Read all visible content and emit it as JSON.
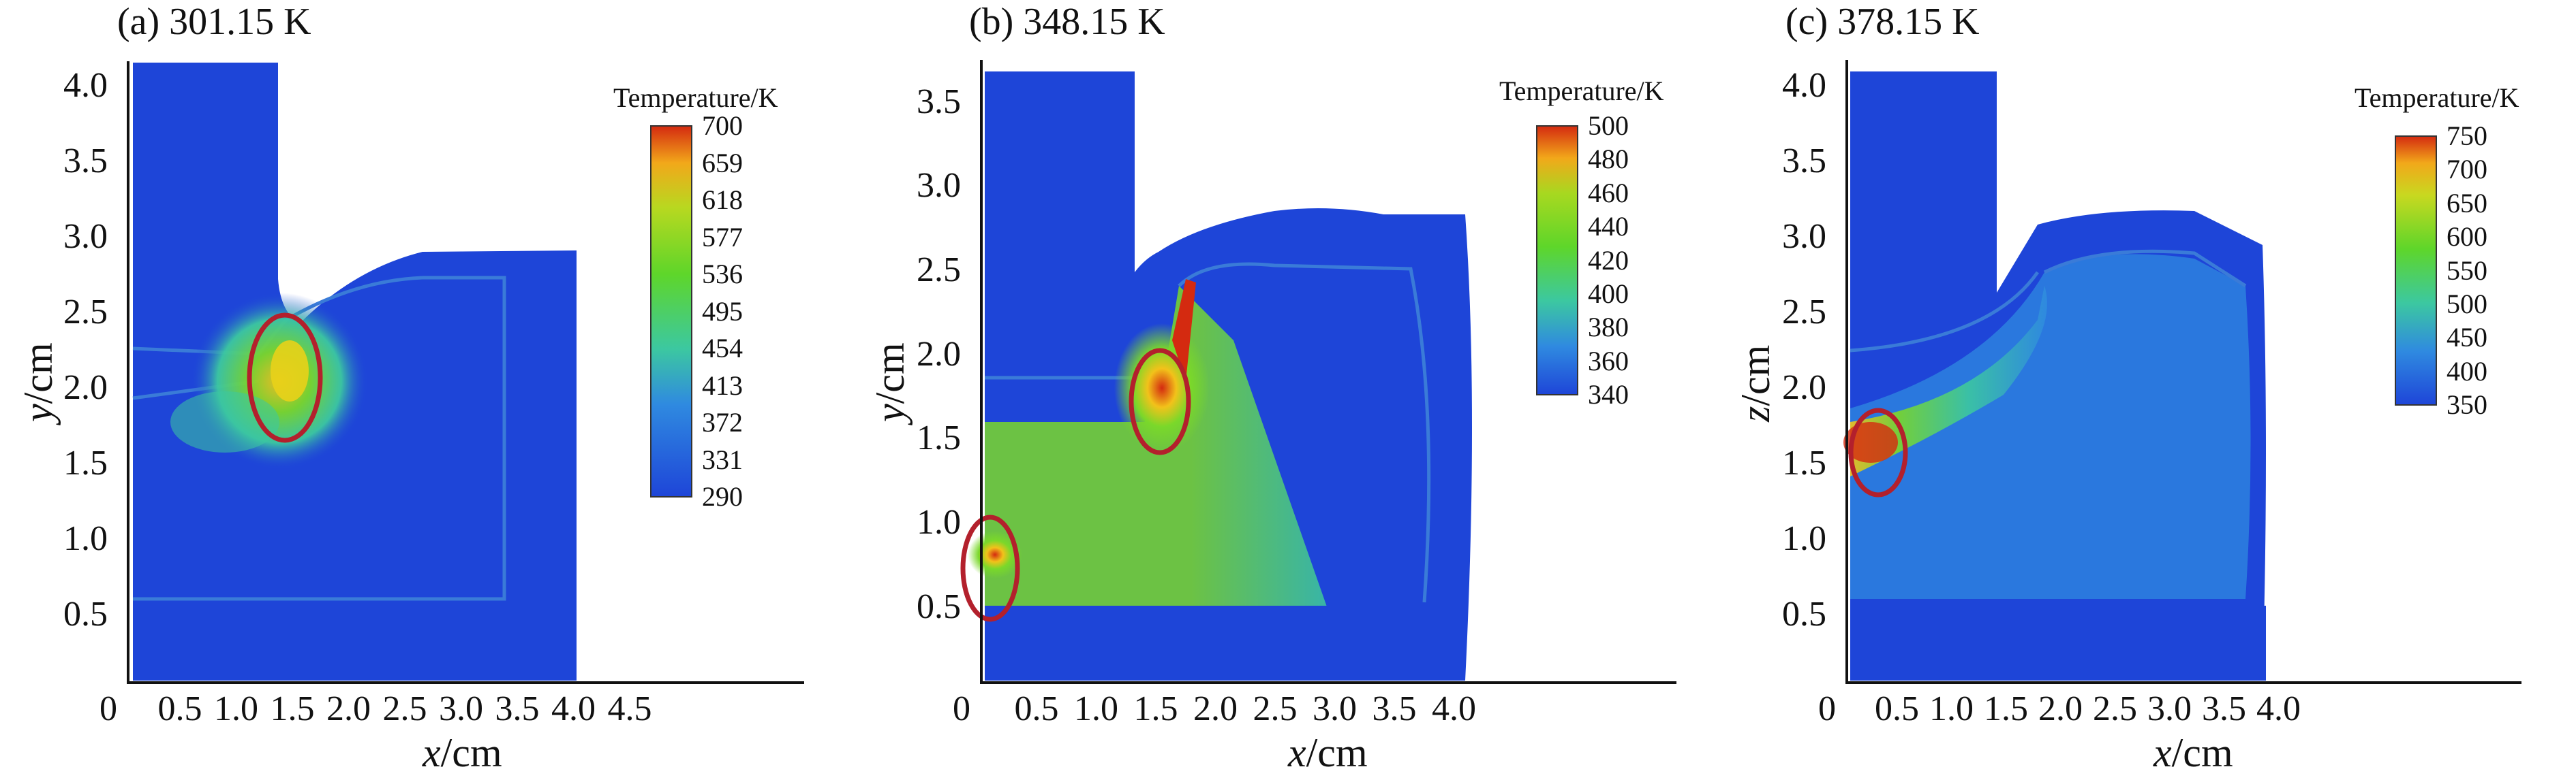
{
  "chart_data": [
    {
      "type": "heatmap",
      "title": "(a) 301.15 K",
      "xlabel_var": "x",
      "xlabel_unit": "/cm",
      "ylabel_var": "y",
      "ylabel_unit": "/cm",
      "xticks": [
        "0",
        "0.5",
        "1.0",
        "1.5",
        "2.0",
        "2.5",
        "3.0",
        "3.5",
        "4.0",
        "4.5"
      ],
      "yticks": [
        "0.5",
        "1.0",
        "1.5",
        "2.0",
        "2.5",
        "3.0",
        "3.5",
        "4.0"
      ],
      "xlim": [
        0,
        4.5
      ],
      "ylim": [
        0.05,
        4.15
      ],
      "colorbar_title": "Temperature/K",
      "colorbar_ticks": [
        "700",
        "659",
        "618",
        "577",
        "536",
        "495",
        "454",
        "413",
        "372",
        "331",
        "290"
      ],
      "hotspot_marker": [
        {
          "x": 1.05,
          "y": 2.05,
          "rx": 0.22,
          "ry": 0.42
        }
      ]
    },
    {
      "type": "heatmap",
      "title": "(b) 348.15 K",
      "xlabel_var": "x",
      "xlabel_unit": "/cm",
      "ylabel_var": "y",
      "ylabel_unit": "/cm",
      "xticks": [
        "0",
        "0.5",
        "1.0",
        "1.5",
        "2.0",
        "2.5",
        "3.0",
        "3.5",
        "4.0"
      ],
      "yticks": [
        "0.5",
        "1.0",
        "1.5",
        "2.0",
        "2.5",
        "3.0",
        "3.5"
      ],
      "xlim": [
        0,
        4.1
      ],
      "ylim": [
        0.05,
        3.75
      ],
      "colorbar_title": "Temperature/K",
      "colorbar_ticks": [
        "500",
        "480",
        "460",
        "440",
        "420",
        "400",
        "380",
        "360",
        "340"
      ],
      "hotspot_marker": [
        {
          "x": 1.05,
          "y": 1.78,
          "rx": 0.13,
          "ry": 0.28
        },
        {
          "x": 0.04,
          "y": 0.68,
          "rx": 0.13,
          "ry": 0.35
        }
      ]
    },
    {
      "type": "heatmap",
      "title": "(c) 378.15 K",
      "xlabel_var": "x",
      "xlabel_unit": "/cm",
      "ylabel_var": "z",
      "ylabel_unit": "/cm",
      "xticks": [
        "0",
        "0.5",
        "1.0",
        "1.5",
        "2.0",
        "2.5",
        "3.0",
        "3.5",
        "4.0"
      ],
      "yticks": [
        "0.5",
        "1.0",
        "1.5",
        "2.0",
        "2.5",
        "3.0",
        "3.5",
        "4.0"
      ],
      "xlim": [
        0,
        4.5
      ],
      "ylim": [
        0.05,
        4.15
      ],
      "colorbar_title": "Temperature/K",
      "colorbar_ticks": [
        "750",
        "700",
        "650",
        "600",
        "550",
        "500",
        "450",
        "400",
        "350"
      ],
      "hotspot_marker": [
        {
          "x": 0.12,
          "y": 1.5,
          "rx": 0.18,
          "ry": 0.28
        }
      ]
    }
  ],
  "colors": {
    "cold": "#1e45d8",
    "cool": "#2a6fe0",
    "mid": "#3cc8a0",
    "warm": "#7ad82a",
    "hot": "#f2c21a",
    "max": "#d42a10",
    "marker": "#b3202c"
  }
}
